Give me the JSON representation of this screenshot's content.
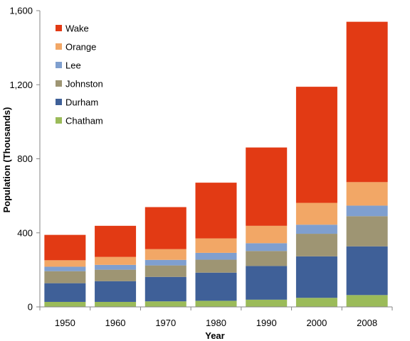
{
  "chart_data": {
    "type": "bar",
    "stacked": true,
    "title": "",
    "xlabel": "Year",
    "ylabel": "Population (Thousands)",
    "ylim": [
      0,
      1600
    ],
    "yticks": [
      0,
      400,
      800,
      1200,
      1600
    ],
    "ytick_labels": [
      "0",
      "400",
      "800",
      "1,200",
      "1,600"
    ],
    "grid": false,
    "legend_position": "top-left",
    "categories": [
      "1950",
      "1960",
      "1970",
      "1980",
      "1990",
      "2000",
      "2008"
    ],
    "series": [
      {
        "name": "Chatham",
        "color": "#9bbb59",
        "values": [
          27,
          27,
          30,
          33,
          39,
          49,
          64
        ]
      },
      {
        "name": "Durham",
        "color": "#3f6098",
        "values": [
          101,
          112,
          132,
          152,
          182,
          224,
          263
        ]
      },
      {
        "name": "Johnston",
        "color": "#9e9573",
        "values": [
          65,
          62,
          62,
          70,
          81,
          122,
          163
        ]
      },
      {
        "name": "Lee",
        "color": "#7f9fcf",
        "values": [
          24,
          26,
          30,
          37,
          42,
          49,
          57
        ]
      },
      {
        "name": "Orange",
        "color": "#f2a766",
        "values": [
          35,
          43,
          58,
          78,
          94,
          118,
          127
        ]
      },
      {
        "name": "Wake",
        "color": "#e23a14",
        "values": [
          137,
          168,
          227,
          301,
          423,
          627,
          866
        ]
      }
    ]
  }
}
